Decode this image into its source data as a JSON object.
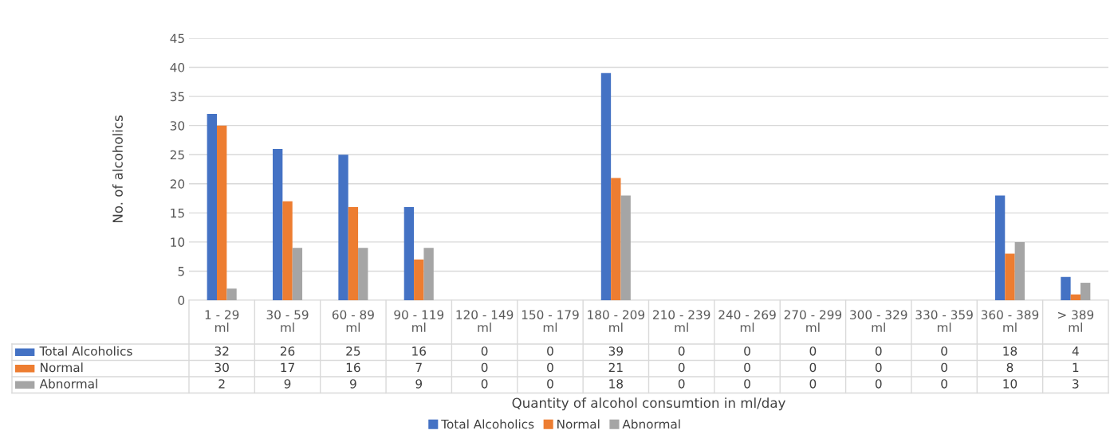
{
  "chart_data": {
    "type": "bar",
    "ylabel": "No. of alcoholics",
    "xlabel": "Quantity of alcohol consumtion in ml/day",
    "categories": [
      "1 - 29 ml",
      "30 - 59 ml",
      "60 - 89 ml",
      "90 - 119 ml",
      "120 - 149 ml",
      "150 - 179 ml",
      "180 - 209 ml",
      "210 - 239 ml",
      "240 - 269 ml",
      "270 - 299 ml",
      "300 - 329 ml",
      "330 - 359 ml",
      "360 - 389 ml",
      "> 389 ml"
    ],
    "series": [
      {
        "name": "Total Alcoholics",
        "color": "#4472c4",
        "values": [
          32,
          26,
          25,
          16,
          0,
          0,
          39,
          0,
          0,
          0,
          0,
          0,
          18,
          4
        ]
      },
      {
        "name": "Normal",
        "color": "#ed7d31",
        "values": [
          30,
          17,
          16,
          7,
          0,
          0,
          21,
          0,
          0,
          0,
          0,
          0,
          8,
          1
        ]
      },
      {
        "name": "Abnormal",
        "color": "#a5a5a5",
        "values": [
          2,
          9,
          9,
          9,
          0,
          0,
          18,
          0,
          0,
          0,
          0,
          0,
          10,
          3
        ]
      }
    ],
    "ylim": [
      0,
      45
    ],
    "yticks": [
      0,
      5,
      10,
      15,
      20,
      25,
      30,
      35,
      40,
      45
    ],
    "grid": "y",
    "legend": "bottom",
    "data_labels": true
  }
}
